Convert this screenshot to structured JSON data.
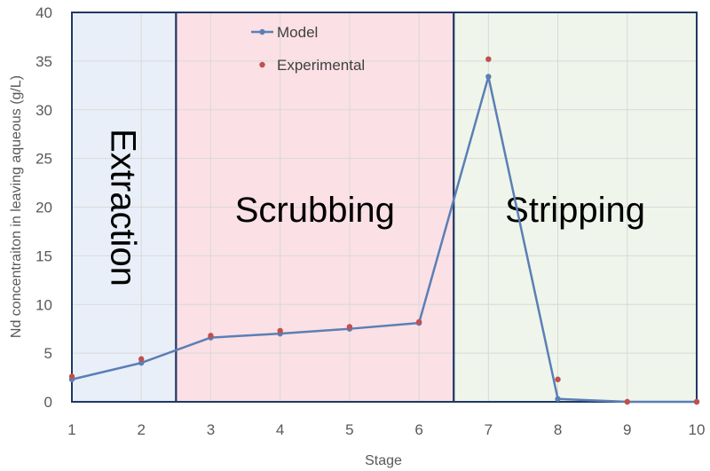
{
  "chart_data": {
    "type": "line",
    "xlabel": "Stage",
    "ylabel": "Nd concentraiton in leaving aqueous (g/L)",
    "xlim": [
      1,
      10
    ],
    "ylim": [
      0,
      40
    ],
    "x_ticks": [
      1,
      2,
      3,
      4,
      5,
      6,
      7,
      8,
      9,
      10
    ],
    "y_ticks": [
      0,
      5,
      10,
      15,
      20,
      25,
      30,
      35,
      40
    ],
    "grid": true,
    "legend_position": "top-center",
    "regions": [
      {
        "label": "Extraction",
        "x_start": 1,
        "x_end": 2.5,
        "color": "#e9eff9",
        "text_orientation": "vertical"
      },
      {
        "label": "Scrubbing",
        "x_start": 2.5,
        "x_end": 6.5,
        "color": "#fbe0e6",
        "text_orientation": "horizontal"
      },
      {
        "label": "Stripping",
        "x_start": 6.5,
        "x_end": 10,
        "color": "#eff5ea",
        "text_orientation": "horizontal"
      }
    ],
    "series": [
      {
        "name": "Model",
        "style": "line-marker",
        "color": "#5b7fb5",
        "x": [
          1,
          2,
          3,
          4,
          5,
          6,
          7,
          8,
          9,
          10
        ],
        "values": [
          2.3,
          4.0,
          6.6,
          7.0,
          7.5,
          8.1,
          33.4,
          0.3,
          0.0,
          0.0
        ]
      },
      {
        "name": "Experimental",
        "style": "marker",
        "color": "#c0504d",
        "x": [
          1,
          2,
          3,
          4,
          5,
          6,
          7,
          8,
          9,
          10
        ],
        "values": [
          2.6,
          4.4,
          6.8,
          7.3,
          7.7,
          8.2,
          35.2,
          2.3,
          0.0,
          0.0
        ]
      }
    ]
  }
}
